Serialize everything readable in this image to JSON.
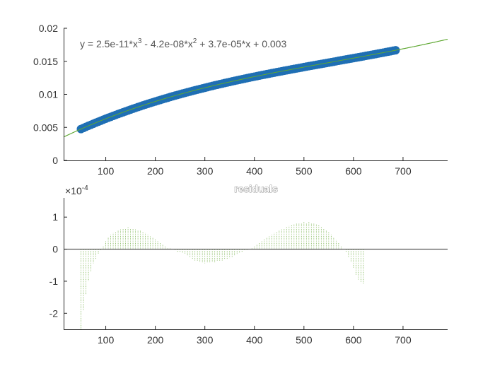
{
  "chart_data": [
    {
      "type": "scatter",
      "title": "",
      "annotation": "y = 2.5e-11*x^3 - 4.2e-08*x^2 + 3.7e-05*x + 0.003",
      "annotation_parts": {
        "a": "y = 2.5e-11*x",
        "b": "3",
        "c": " - 4.2e-08*x",
        "d": "2",
        "e": " + 3.7e-05*x + 0.003"
      },
      "xlim": [
        15,
        790
      ],
      "ylim": [
        0,
        0.02
      ],
      "x_ticks": [
        100,
        200,
        300,
        400,
        500,
        600,
        700
      ],
      "y_ticks": [
        0,
        0.005,
        0.01,
        0.015,
        0.02
      ],
      "y_tick_labels": [
        "0",
        "0.005",
        "0.01",
        "0.015",
        "0.02"
      ],
      "grid": false,
      "series": [
        {
          "kind": "data points",
          "color": "#1f6fb4",
          "x_range": [
            50,
            685
          ],
          "x_step": 5,
          "values_from_fit": true
        },
        {
          "kind": "fit line",
          "color": "#5fa832",
          "x_range": [
            15,
            790
          ]
        }
      ],
      "coefficients": [
        2.5e-11,
        -4.2e-08,
        3.7e-05,
        0.003
      ]
    },
    {
      "type": "bar",
      "title": "residuals",
      "exponent_label": "×10",
      "exponent_sup": "-4",
      "xlim": [
        15,
        790
      ],
      "ylim": [
        -2.5,
        1.6
      ],
      "x_ticks": [
        100,
        200,
        300,
        400,
        500,
        600,
        700
      ],
      "y_ticks": [
        -2,
        -1,
        0,
        1
      ],
      "y_tick_labels": [
        "-2",
        "-1",
        "0",
        "1"
      ],
      "zero_line": true,
      "grid": false,
      "color": "#6aaa3a",
      "points": [
        [
          50,
          -2.5
        ],
        [
          55,
          -1.9
        ],
        [
          60,
          -1.4
        ],
        [
          65,
          -1.0
        ],
        [
          70,
          -0.7
        ],
        [
          75,
          -0.45
        ],
        [
          80,
          -0.3
        ],
        [
          85,
          -0.15
        ],
        [
          90,
          -0.05
        ],
        [
          95,
          0.1
        ],
        [
          100,
          0.25
        ],
        [
          105,
          0.38
        ],
        [
          110,
          0.45
        ],
        [
          115,
          0.5
        ],
        [
          120,
          0.55
        ],
        [
          125,
          0.6
        ],
        [
          130,
          0.62
        ],
        [
          135,
          0.66
        ],
        [
          140,
          0.65
        ],
        [
          145,
          0.68
        ],
        [
          150,
          0.64
        ],
        [
          155,
          0.66
        ],
        [
          160,
          0.62
        ],
        [
          165,
          0.6
        ],
        [
          170,
          0.58
        ],
        [
          175,
          0.55
        ],
        [
          180,
          0.5
        ],
        [
          185,
          0.45
        ],
        [
          190,
          0.4
        ],
        [
          195,
          0.35
        ],
        [
          200,
          0.3
        ],
        [
          205,
          0.25
        ],
        [
          210,
          0.2
        ],
        [
          215,
          0.15
        ],
        [
          220,
          0.1
        ],
        [
          225,
          0.05
        ],
        [
          230,
          0.02
        ],
        [
          235,
          0.0
        ],
        [
          240,
          -0.05
        ],
        [
          245,
          -0.08
        ],
        [
          250,
          -0.1
        ],
        [
          255,
          -0.12
        ],
        [
          260,
          -0.15
        ],
        [
          265,
          -0.2
        ],
        [
          270,
          -0.25
        ],
        [
          275,
          -0.3
        ],
        [
          280,
          -0.35
        ],
        [
          285,
          -0.38
        ],
        [
          290,
          -0.4
        ],
        [
          295,
          -0.42
        ],
        [
          300,
          -0.45
        ],
        [
          305,
          -0.42
        ],
        [
          310,
          -0.44
        ],
        [
          315,
          -0.4
        ],
        [
          320,
          -0.42
        ],
        [
          325,
          -0.38
        ],
        [
          330,
          -0.36
        ],
        [
          335,
          -0.35
        ],
        [
          340,
          -0.32
        ],
        [
          345,
          -0.3
        ],
        [
          350,
          -0.28
        ],
        [
          355,
          -0.25
        ],
        [
          360,
          -0.2
        ],
        [
          365,
          -0.17
        ],
        [
          370,
          -0.12
        ],
        [
          375,
          -0.08
        ],
        [
          380,
          -0.05
        ],
        [
          385,
          -0.02
        ],
        [
          390,
          0.0
        ],
        [
          395,
          0.05
        ],
        [
          400,
          0.1
        ],
        [
          405,
          0.15
        ],
        [
          410,
          0.2
        ],
        [
          415,
          0.25
        ],
        [
          420,
          0.3
        ],
        [
          425,
          0.35
        ],
        [
          430,
          0.4
        ],
        [
          435,
          0.45
        ],
        [
          440,
          0.5
        ],
        [
          445,
          0.55
        ],
        [
          450,
          0.58
        ],
        [
          455,
          0.62
        ],
        [
          460,
          0.65
        ],
        [
          465,
          0.7
        ],
        [
          470,
          0.72
        ],
        [
          475,
          0.75
        ],
        [
          480,
          0.78
        ],
        [
          485,
          0.8
        ],
        [
          490,
          0.82
        ],
        [
          495,
          0.8
        ],
        [
          500,
          0.85
        ],
        [
          505,
          0.82
        ],
        [
          510,
          0.85
        ],
        [
          515,
          0.8
        ],
        [
          520,
          0.82
        ],
        [
          525,
          0.78
        ],
        [
          530,
          0.75
        ],
        [
          535,
          0.7
        ],
        [
          540,
          0.65
        ],
        [
          545,
          0.6
        ],
        [
          550,
          0.52
        ],
        [
          555,
          0.45
        ],
        [
          560,
          0.35
        ],
        [
          565,
          0.28
        ],
        [
          570,
          0.2
        ],
        [
          575,
          0.1
        ],
        [
          580,
          0.0
        ],
        [
          585,
          -0.1
        ],
        [
          590,
          -0.25
        ],
        [
          595,
          -0.4
        ],
        [
          600,
          -0.6
        ],
        [
          605,
          -0.8
        ],
        [
          610,
          -0.95
        ],
        [
          615,
          -1.05
        ],
        [
          620,
          -1.1
        ]
      ]
    }
  ]
}
